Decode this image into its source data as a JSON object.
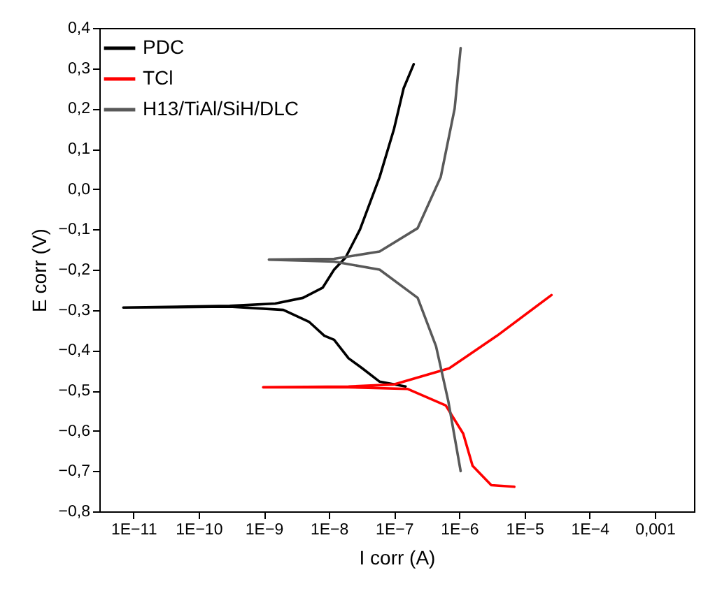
{
  "chart_data": {
    "type": "line",
    "xlabel": "I corr (A)",
    "ylabel": "E corr (V)",
    "log": "x",
    "legend": "top left",
    "xlim": [
      3e-12,
      0.004
    ],
    "ylim": [
      -0.8,
      0.4
    ],
    "xticks": [
      {
        "value": 1e-11,
        "label": "1E−11"
      },
      {
        "value": 1e-10,
        "label": "1E−10"
      },
      {
        "value": 1e-09,
        "label": "1E−9"
      },
      {
        "value": 1e-08,
        "label": "1E−8"
      },
      {
        "value": 1e-07,
        "label": "1E−7"
      },
      {
        "value": 1e-06,
        "label": "1E−6"
      },
      {
        "value": 1e-05,
        "label": "1E−5"
      },
      {
        "value": 0.0001,
        "label": "1E−4"
      },
      {
        "value": 0.001,
        "label": "0,001"
      }
    ],
    "yticks": [
      {
        "value": -0.8,
        "label": "−0,8"
      },
      {
        "value": -0.7,
        "label": "−0,7"
      },
      {
        "value": -0.6,
        "label": "−0,6"
      },
      {
        "value": -0.5,
        "label": "−0,5"
      },
      {
        "value": -0.4,
        "label": "−0,4"
      },
      {
        "value": -0.3,
        "label": "−0,3"
      },
      {
        "value": -0.2,
        "label": "−0,2"
      },
      {
        "value": -0.1,
        "label": "−0,1"
      },
      {
        "value": 0,
        "label": "0,0"
      },
      {
        "value": 0.1,
        "label": "0,1"
      },
      {
        "value": 0.2,
        "label": "0,2"
      },
      {
        "value": 0.3,
        "label": "0,3"
      },
      {
        "value": 0.4,
        "label": "0,4"
      }
    ],
    "series": [
      {
        "name": "PDC",
        "color": "#000000",
        "x": [
          1.5e-07,
          6e-08,
          3.2e-08,
          2e-08,
          1.2e-08,
          8.5e-09,
          5e-09,
          2e-09,
          3e-10,
          7e-12,
          3e-10,
          1.5e-09,
          4e-09,
          8e-09,
          1.2e-08,
          1.8e-08,
          3e-08,
          6e-08,
          1e-07,
          1.4e-07,
          2e-07
        ],
        "values": [
          -0.49,
          -0.478,
          -0.444,
          -0.42,
          -0.374,
          -0.364,
          -0.33,
          -0.3,
          -0.292,
          -0.294,
          -0.29,
          -0.284,
          -0.27,
          -0.245,
          -0.2,
          -0.17,
          -0.1,
          0.03,
          0.15,
          0.25,
          0.31
        ]
      },
      {
        "name": "TCl",
        "color": "#ff0000",
        "x": [
          7e-06,
          3.1e-06,
          1.6e-06,
          1.15e-06,
          6.2e-07,
          1.6e-07,
          2e-08,
          9.8e-10,
          2e-08,
          1e-07,
          7e-07,
          3.8e-06,
          2.6e-05
        ],
        "values": [
          -0.739,
          -0.735,
          -0.687,
          -0.607,
          -0.537,
          -0.496,
          -0.492,
          -0.492,
          -0.49,
          -0.485,
          -0.445,
          -0.364,
          -0.263
        ]
      },
      {
        "name": "H13/TiAl/SiH/DLC",
        "color": "#595959",
        "x": [
          1.05e-06,
          6.8e-07,
          4.4e-07,
          2.3e-07,
          6e-08,
          1.2e-08,
          1.2e-09,
          1.2e-08,
          6e-08,
          2.3e-07,
          5.2e-07,
          8.5e-07,
          1.05e-06
        ],
        "values": [
          -0.7,
          -0.527,
          -0.39,
          -0.27,
          -0.2,
          -0.18,
          -0.175,
          -0.173,
          -0.155,
          -0.097,
          0.03,
          0.2,
          0.35
        ]
      }
    ]
  }
}
